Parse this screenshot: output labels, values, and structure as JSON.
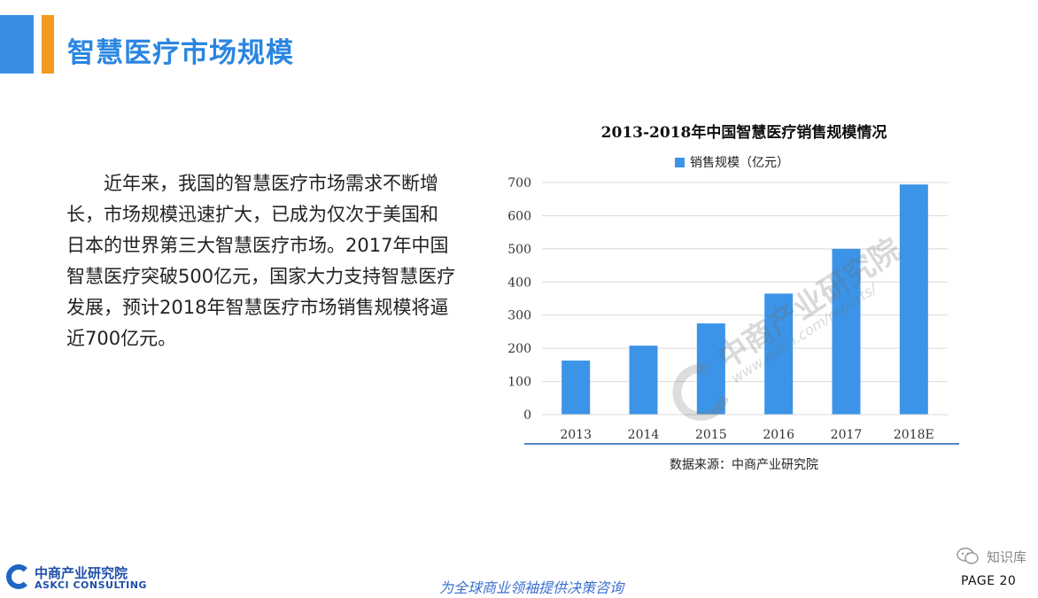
{
  "header": {
    "title": "智慧医疗市场规模"
  },
  "body": {
    "paragraph": "　　近年来，我国的智慧医疗市场需求不断增长，市场规模迅速扩大，已成为仅次于美国和日本的世界第三大智慧医疗市场。2017年中国智慧医疗突破500亿元，国家大力支持智慧医疗发展，预计2018年智慧医疗市场销售规模将逼近700亿元。"
  },
  "chart_data": {
    "type": "bar",
    "title": "2013-2018年中国智慧医疗销售规模情况",
    "categories": [
      "2013",
      "2014",
      "2015",
      "2016",
      "2017",
      "2018E"
    ],
    "series": [
      {
        "name": "销售规模（亿元）",
        "values": [
          163,
          208,
          275,
          365,
          500,
          694
        ]
      }
    ],
    "ylim": [
      0,
      700
    ],
    "yticks": [
      0,
      100,
      200,
      300,
      400,
      500,
      600,
      700
    ],
    "grid": true,
    "legend": "top",
    "bar_color": "#3c94e8",
    "source": "数据来源：中商产业研究院"
  },
  "watermark": {
    "name": "中商产业研究院",
    "url": "www.askci.com/reports/"
  },
  "footer": {
    "logo_cn": "中商产业研究院",
    "logo_en": "ASKCI CONSULTING",
    "slogan": "为全球商业领袖提供决策咨询",
    "wechat_label": "知识库",
    "page_label": "PAGE  20"
  },
  "colors": {
    "title_blue": "#2a86e0",
    "accent_orange": "#f39a1e",
    "bar_blue": "#3c94e8"
  }
}
